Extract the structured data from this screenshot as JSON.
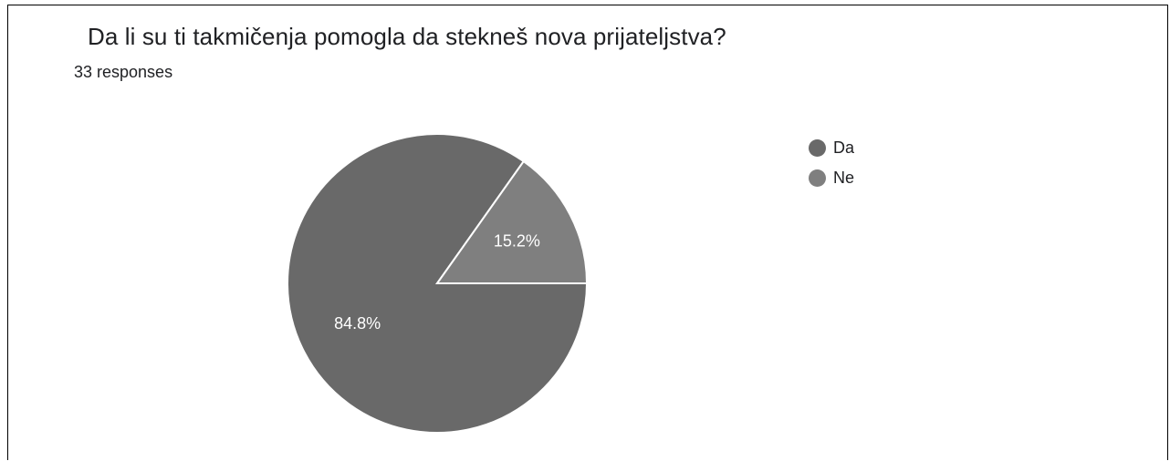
{
  "chart_data": {
    "type": "pie",
    "title": "Da li su ti takmičenja pomogla da stekneš nova prijateljstva?",
    "subtitle": "33 responses",
    "categories": [
      "Da",
      "Ne"
    ],
    "values": [
      84.8,
      15.2
    ],
    "labels": [
      "84.8%",
      "15.2%"
    ],
    "colors": [
      "#696969",
      "#7f7f7f"
    ],
    "slice_border_color": "#ffffff",
    "legend": "right"
  }
}
